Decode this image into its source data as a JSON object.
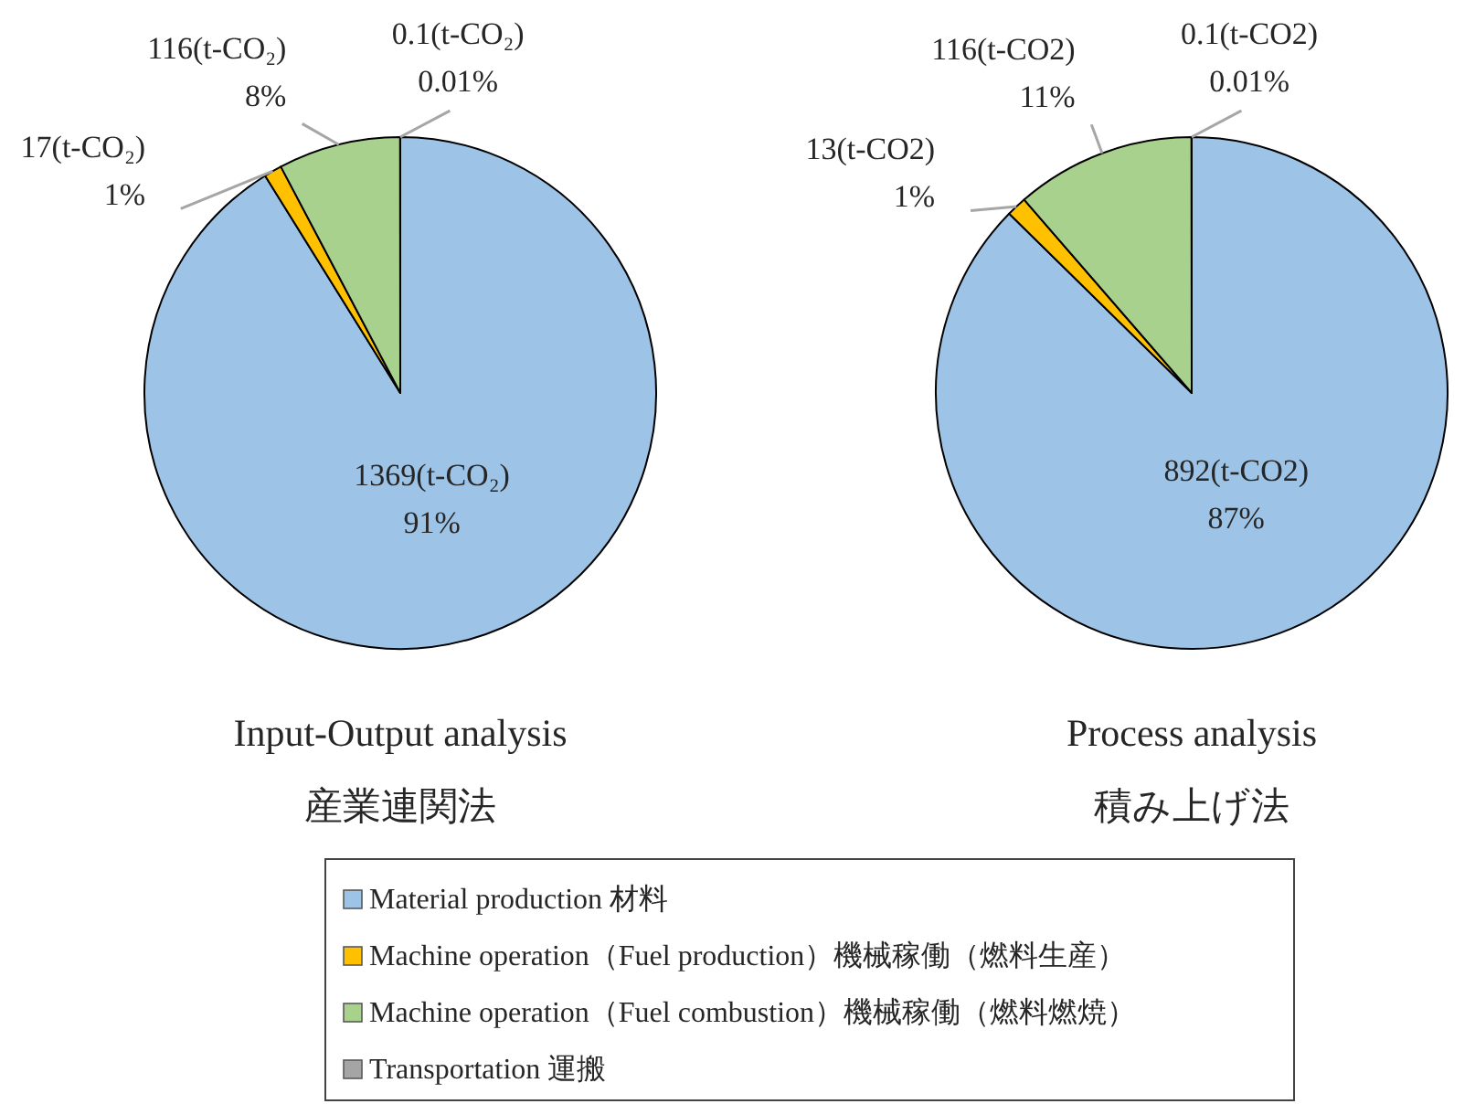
{
  "chart_data": [
    {
      "type": "pie",
      "title": "Input-Output analysis",
      "subtitle": "産業連関法",
      "categories": [
        "Material production  材料",
        "Machine operation（Fuel production）機械稼働（燃料生産）",
        "Machine operation（Fuel combustion）機械稼働（燃料燃焼）",
        "Transportation  運搬"
      ],
      "values": [
        1369,
        17,
        116,
        0.1
      ],
      "colors": [
        "#9dc3e6",
        "#ffc000",
        "#a9d18e",
        "#a5a5a5"
      ],
      "value_labels": [
        "1369(t-CO₂)\n91%",
        "17(t-CO₂)\n1%",
        "116(t-CO₂)\n8%",
        "0.1(t-CO₂)\n0.01%"
      ],
      "legend": "bottom"
    },
    {
      "type": "pie",
      "title": "Process analysis",
      "subtitle": "積み上げ法",
      "values": [
        892,
        13,
        116,
        0.1
      ],
      "colors": [
        "#9dc3e6",
        "#ffc000",
        "#a9d18e",
        "#a5a5a5"
      ],
      "value_labels": [
        "892(t-CO2)\n87%",
        "13(t-CO2)\n1%",
        "116(t-CO2)\n11%",
        "0.1(t-CO2)\n0.01%"
      ]
    }
  ]
}
